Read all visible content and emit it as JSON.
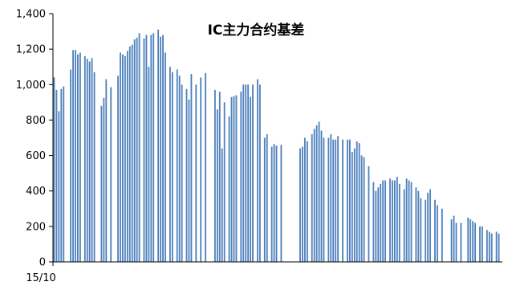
{
  "chart_data": {
    "type": "bar",
    "title": "IC主力合约基差",
    "xlabel": "",
    "ylabel": "",
    "ylim": [
      0,
      1400
    ],
    "yticks": [
      "0",
      "200",
      "400",
      "600",
      "800",
      "1,000",
      "1,200",
      "1,400"
    ],
    "xtick_labels": [
      "15/10"
    ],
    "grid": false,
    "legend": "none",
    "colors": {
      "bar": "#4F81BD",
      "axis": "#000000",
      "text": "#000000"
    },
    "values": [
      1040,
      970,
      850,
      975,
      990,
      0,
      0,
      1085,
      1195,
      1195,
      1170,
      1180,
      0,
      1160,
      1145,
      1130,
      1150,
      1070,
      0,
      0,
      880,
      925,
      1030,
      0,
      985,
      0,
      0,
      1050,
      1180,
      1170,
      1160,
      1190,
      1215,
      1225,
      1255,
      1265,
      1290,
      0,
      1260,
      1280,
      1100,
      1280,
      1290,
      0,
      1310,
      1270,
      1280,
      1180,
      0,
      1100,
      1070,
      0,
      1085,
      1050,
      1000,
      0,
      975,
      915,
      1060,
      0,
      1000,
      0,
      1040,
      0,
      1065,
      0,
      0,
      0,
      970,
      860,
      960,
      640,
      900,
      0,
      820,
      930,
      935,
      940,
      0,
      960,
      1000,
      1000,
      1000,
      930,
      1000,
      0,
      1030,
      1000,
      0,
      700,
      720,
      0,
      650,
      665,
      655,
      0,
      660,
      0,
      0,
      0,
      0,
      0,
      0,
      0,
      640,
      650,
      700,
      680,
      0,
      720,
      750,
      770,
      790,
      740,
      700,
      0,
      700,
      720,
      690,
      690,
      710,
      0,
      690,
      0,
      690,
      690,
      620,
      640,
      680,
      670,
      600,
      590,
      0,
      540,
      0,
      450,
      400,
      420,
      440,
      460,
      460,
      0,
      470,
      460,
      460,
      480,
      440,
      0,
      410,
      470,
      460,
      450,
      0,
      420,
      400,
      360,
      0,
      350,
      390,
      410,
      0,
      350,
      320,
      0,
      300,
      0,
      0,
      0,
      240,
      260,
      220,
      0,
      220,
      0,
      0,
      250,
      240,
      230,
      220,
      0,
      200,
      200,
      0,
      180,
      170,
      160,
      0,
      170,
      160,
      0
    ]
  }
}
